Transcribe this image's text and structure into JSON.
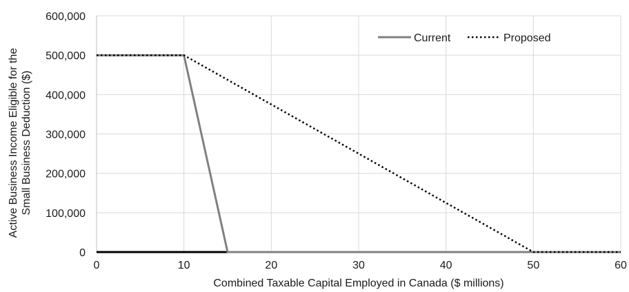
{
  "chart_data": {
    "type": "line",
    "xlabel": "Combined Taxable Capital Employed in Canada ($ millions)",
    "ylabel_lines": [
      "Active Business Income Eligible for the",
      "Small Business Deduction ($)"
    ],
    "xlim": [
      0,
      60
    ],
    "ylim": [
      0,
      600000
    ],
    "x_ticks": [
      0,
      10,
      20,
      30,
      40,
      50,
      60
    ],
    "x_tick_labels": [
      "0",
      "10",
      "20",
      "30",
      "40",
      "50",
      "60"
    ],
    "y_ticks": [
      0,
      100000,
      200000,
      300000,
      400000,
      500000,
      600000
    ],
    "y_tick_labels": [
      "0",
      "100,000",
      "200,000",
      "300,000",
      "400,000",
      "500,000",
      "600,000"
    ],
    "grid": "vertical-and-horizontal",
    "legend_position": "top-right",
    "series": [
      {
        "name": "Current",
        "style": "solid",
        "color": "#808080",
        "points": [
          [
            0,
            500000
          ],
          [
            10,
            500000
          ],
          [
            15,
            0
          ],
          [
            60,
            0
          ]
        ]
      },
      {
        "name": "Proposed",
        "style": "dotted",
        "color": "#000000",
        "points": [
          [
            0,
            500000
          ],
          [
            10,
            500000
          ],
          [
            50,
            0
          ],
          [
            60,
            0
          ]
        ]
      }
    ]
  }
}
